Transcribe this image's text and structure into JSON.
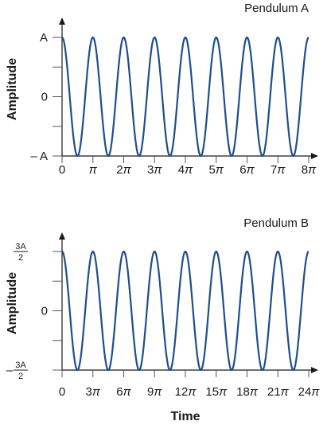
{
  "colors": {
    "curve": "#1f4e8c",
    "axis": "#1a1a1a",
    "grid": "#555555"
  },
  "chart_data": [
    {
      "type": "line",
      "title": "Pendulum A",
      "ylabel": "Amplitude",
      "xlabel": "",
      "xlim": [
        0,
        8
      ],
      "ylim": [
        -1,
        1
      ],
      "x_unit": "π",
      "function": "A·cos(2t)",
      "x_ticks": [
        {
          "value": 0,
          "label": "0"
        },
        {
          "value": 1,
          "label": "π"
        },
        {
          "value": 2,
          "label": "2π"
        },
        {
          "value": 3,
          "label": "3π"
        },
        {
          "value": 4,
          "label": "4π"
        },
        {
          "value": 5,
          "label": "5π"
        },
        {
          "value": 6,
          "label": "6π"
        },
        {
          "value": 7,
          "label": "7π"
        },
        {
          "value": 8,
          "label": "8π"
        }
      ],
      "y_ticks": [
        {
          "value": 1,
          "label": "A"
        },
        {
          "value": 0.5,
          "label": ""
        },
        {
          "value": 0,
          "label": "0"
        },
        {
          "value": -0.5,
          "label": ""
        },
        {
          "value": -1,
          "label": "– A"
        }
      ],
      "series": [
        {
          "x": [
            0,
            0.5,
            1,
            1.5,
            2,
            2.5,
            3,
            3.5,
            4,
            4.5,
            5,
            5.5,
            6,
            6.5,
            7,
            7.5,
            8
          ],
          "y": [
            1,
            -1,
            1,
            -1,
            1,
            -1,
            1,
            -1,
            1,
            -1,
            1,
            -1,
            1,
            -1,
            1,
            -1,
            1
          ]
        }
      ]
    },
    {
      "type": "line",
      "title": "Pendulum B",
      "ylabel": "Amplitude",
      "xlabel": "Time",
      "xlim": [
        0,
        24
      ],
      "ylim": [
        -1.5,
        1.5
      ],
      "x_unit": "π",
      "function": "(3A/2)·cos(2t/3)",
      "x_ticks": [
        {
          "value": 0,
          "label": "0"
        },
        {
          "value": 3,
          "label": "3π"
        },
        {
          "value": 6,
          "label": "6π"
        },
        {
          "value": 9,
          "label": "9π"
        },
        {
          "value": 12,
          "label": "12π"
        },
        {
          "value": 15,
          "label": "15π"
        },
        {
          "value": 18,
          "label": "18π"
        },
        {
          "value": 21,
          "label": "21π"
        },
        {
          "value": 24,
          "label": "24π"
        }
      ],
      "y_ticks": [
        {
          "value": 1.5,
          "label": "3A/2"
        },
        {
          "value": 0.75,
          "label": ""
        },
        {
          "value": 0,
          "label": "0"
        },
        {
          "value": -0.75,
          "label": ""
        },
        {
          "value": -1.5,
          "label": "– 3A/2"
        }
      ],
      "series": [
        {
          "x": [
            0,
            1.5,
            3,
            4.5,
            6,
            7.5,
            9,
            10.5,
            12,
            13.5,
            15,
            16.5,
            18,
            19.5,
            21,
            22.5,
            24
          ],
          "y": [
            1.5,
            -1.5,
            1.5,
            -1.5,
            1.5,
            -1.5,
            1.5,
            -1.5,
            1.5,
            -1.5,
            1.5,
            -1.5,
            1.5,
            -1.5,
            1.5,
            -1.5,
            1.5
          ]
        }
      ]
    }
  ]
}
